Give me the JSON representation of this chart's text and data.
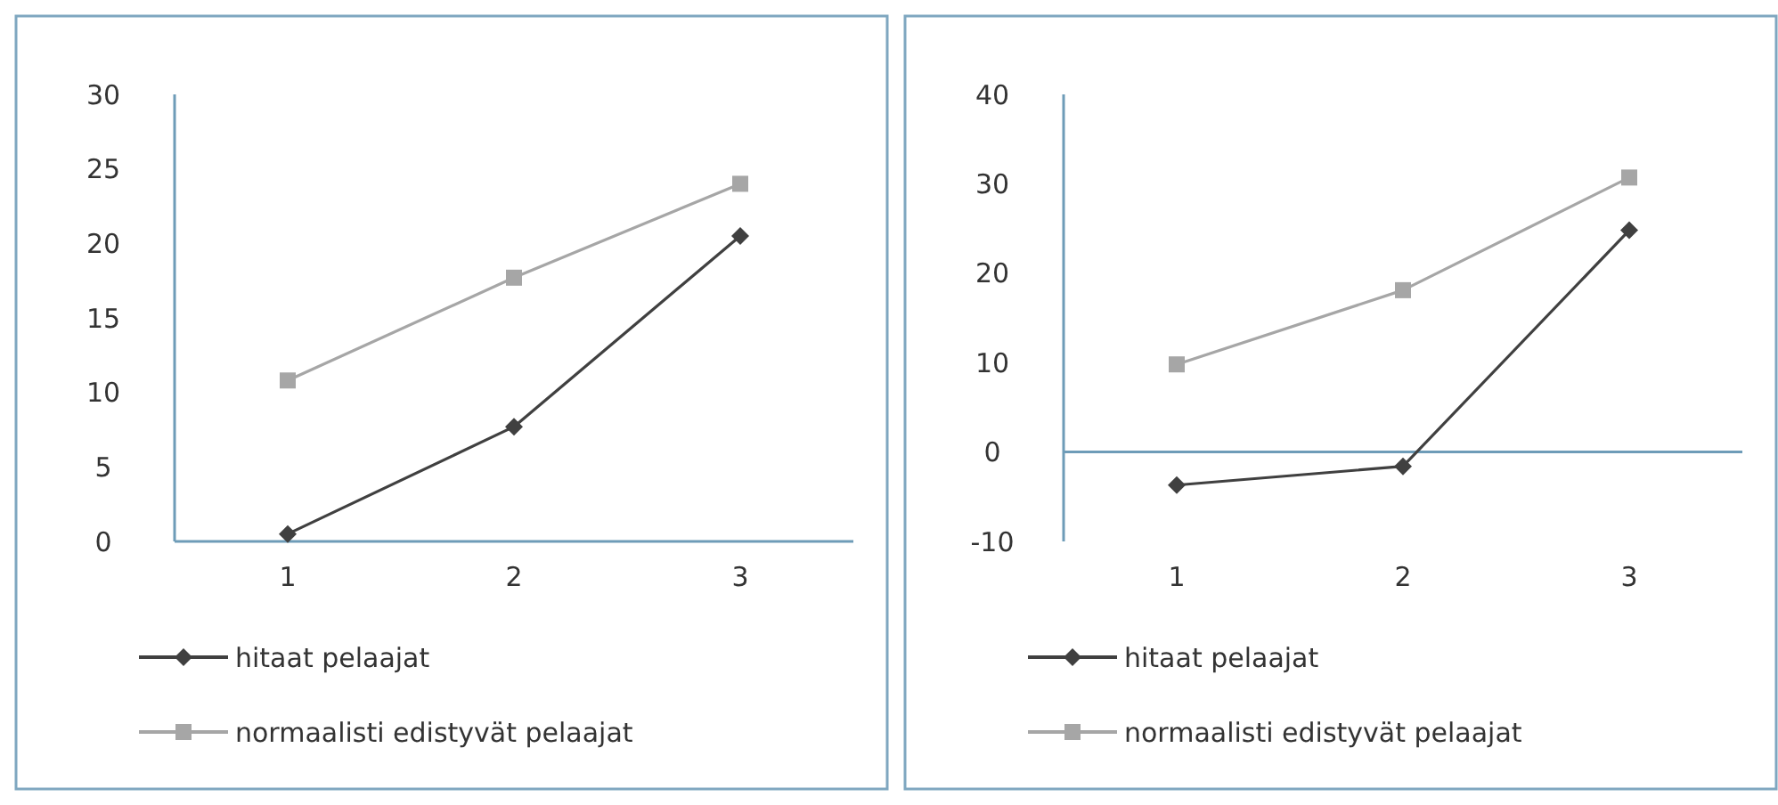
{
  "chart_data": [
    {
      "type": "line",
      "categories": [
        "1",
        "2",
        "3"
      ],
      "ylim": [
        0,
        30
      ],
      "yticks": [
        0,
        5,
        10,
        15,
        20,
        25,
        30
      ],
      "grid": false,
      "legend": "bottom",
      "series": [
        {
          "name": "hitaat pelaajat",
          "color": "#404040",
          "marker": "diamond",
          "values": [
            0.5,
            7.7,
            20.5
          ]
        },
        {
          "name": "normaalisti edistyvät pelaajat",
          "color": "#a6a6a6",
          "marker": "square",
          "values": [
            10.8,
            17.7,
            24
          ]
        }
      ]
    },
    {
      "type": "line",
      "categories": [
        "1",
        "2",
        "3"
      ],
      "ylim": [
        -10,
        40
      ],
      "yticks": [
        -10,
        0,
        10,
        20,
        30,
        40
      ],
      "grid": false,
      "legend": "bottom",
      "ref_lines": [
        {
          "axis": "y",
          "value": 0,
          "color": "#6e9cb8"
        }
      ],
      "series": [
        {
          "name": "hitaat pelaajat",
          "color": "#404040",
          "marker": "diamond",
          "values": [
            -3.7,
            -1.6,
            24.8
          ]
        },
        {
          "name": "normaalisti edistyvät pelaajat",
          "color": "#a6a6a6",
          "marker": "square",
          "values": [
            9.8,
            18.1,
            30.7
          ]
        }
      ]
    }
  ]
}
